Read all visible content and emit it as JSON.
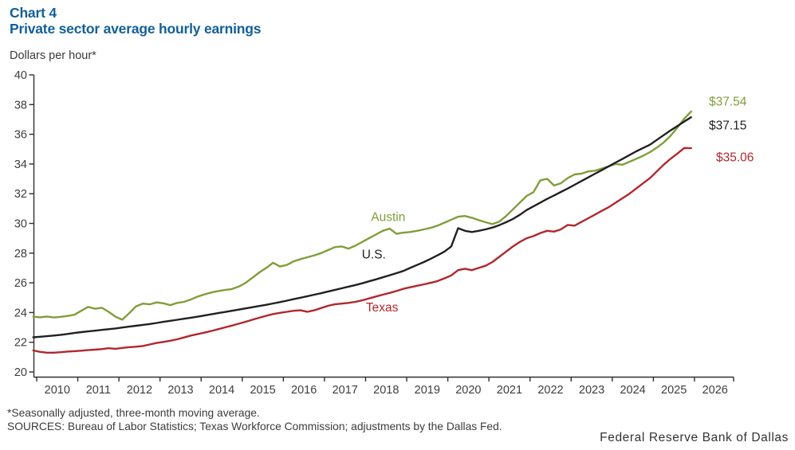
{
  "header": {
    "title": "Chart 4",
    "subtitle": "Private sector average hourly earnings",
    "unit_label": "Dollars per hour*"
  },
  "footer": {
    "footnote": "*Seasonally adjusted, three-month moving average.",
    "sources": "SOURCES: Bureau of Labor Statistics; Texas Workforce Commission; adjustments by the Dallas Fed.",
    "watermark": "Federal Reserve Bank of Dallas"
  },
  "colors": {
    "title_blue": "#115f99",
    "austin_green": "#7f9e3b",
    "us_black": "#231f20",
    "texas_red": "#b1272c",
    "axis": "#2f2f2f",
    "tick_text": "#3d3d3d"
  },
  "chart_data": {
    "type": "line",
    "title": "Private sector average hourly earnings",
    "ylabel": "Dollars per hour",
    "ylim": [
      20,
      40
    ],
    "ytick_step": 2,
    "xlim_years": [
      2009.83,
      2026.95
    ],
    "xtick_years": [
      2010,
      2011,
      2012,
      2013,
      2014,
      2015,
      2016,
      2017,
      2018,
      2019,
      2020,
      2021,
      2022,
      2023,
      2024,
      2025,
      2026
    ],
    "grid": false,
    "legend_position": "inline-labels",
    "series_start_year": 2009.917,
    "series_step_years": 0.16667,
    "series": [
      {
        "name": "Austin",
        "color": "#7f9e3b",
        "end_label": {
          "text": "$37.54",
          "x": 889,
          "dy": -13
        },
        "values": [
          23.72,
          23.68,
          23.73,
          23.67,
          23.71,
          23.77,
          23.85,
          24.12,
          24.38,
          24.26,
          24.32,
          24.05,
          23.72,
          23.52,
          23.95,
          24.42,
          24.6,
          24.55,
          24.68,
          24.62,
          24.5,
          24.65,
          24.72,
          24.88,
          25.08,
          25.22,
          25.35,
          25.45,
          25.52,
          25.58,
          25.75,
          26.0,
          26.35,
          26.7,
          27.0,
          27.35,
          27.1,
          27.2,
          27.45,
          27.6,
          27.72,
          27.85,
          28.0,
          28.2,
          28.4,
          28.45,
          28.3,
          28.5,
          28.75,
          29.0,
          29.25,
          29.5,
          29.65,
          29.3,
          29.38,
          29.42,
          29.5,
          29.6,
          29.7,
          29.85,
          30.05,
          30.25,
          30.45,
          30.5,
          30.38,
          30.22,
          30.08,
          29.95,
          30.12,
          30.5,
          30.95,
          31.4,
          31.85,
          32.1,
          32.9,
          33.0,
          32.55,
          32.7,
          33.05,
          33.3,
          33.35,
          33.5,
          33.55,
          33.7,
          33.85,
          34.0,
          33.95,
          34.15,
          34.35,
          34.55,
          34.8,
          35.1,
          35.45,
          35.9,
          36.45,
          37.05,
          37.54
        ]
      },
      {
        "name": "U.S.",
        "color": "#231f20",
        "end_label": {
          "text": "$37.15",
          "x": 889,
          "dy": 10
        },
        "values": [
          22.33,
          22.37,
          22.41,
          22.45,
          22.5,
          22.56,
          22.62,
          22.68,
          22.73,
          22.78,
          22.83,
          22.88,
          22.93,
          22.99,
          23.05,
          23.11,
          23.17,
          23.23,
          23.3,
          23.37,
          23.44,
          23.51,
          23.58,
          23.65,
          23.72,
          23.8,
          23.88,
          23.96,
          24.04,
          24.12,
          24.2,
          24.28,
          24.36,
          24.44,
          24.52,
          24.61,
          24.7,
          24.8,
          24.9,
          25.0,
          25.1,
          25.2,
          25.3,
          25.41,
          25.52,
          25.63,
          25.74,
          25.85,
          25.97,
          26.1,
          26.23,
          26.37,
          26.51,
          26.65,
          26.8,
          27.0,
          27.2,
          27.4,
          27.62,
          27.85,
          28.1,
          28.45,
          29.68,
          29.5,
          29.42,
          29.5,
          29.6,
          29.72,
          29.88,
          30.08,
          30.3,
          30.58,
          30.9,
          31.15,
          31.4,
          31.65,
          31.88,
          32.12,
          32.35,
          32.6,
          32.85,
          33.1,
          33.35,
          33.6,
          33.85,
          34.1,
          34.35,
          34.6,
          34.85,
          35.08,
          35.3,
          35.62,
          35.94,
          36.26,
          36.56,
          36.86,
          37.15
        ]
      },
      {
        "name": "Texas",
        "color": "#b1272c",
        "end_label": {
          "text": "$35.06",
          "x": 898,
          "dy": 11
        },
        "values": [
          21.45,
          21.35,
          21.3,
          21.3,
          21.33,
          21.37,
          21.4,
          21.43,
          21.47,
          21.5,
          21.54,
          21.6,
          21.56,
          21.62,
          21.67,
          21.7,
          21.75,
          21.85,
          21.95,
          22.02,
          22.1,
          22.2,
          22.32,
          22.45,
          22.55,
          22.65,
          22.76,
          22.88,
          23.0,
          23.12,
          23.25,
          23.38,
          23.52,
          23.65,
          23.78,
          23.9,
          23.98,
          24.05,
          24.12,
          24.15,
          24.05,
          24.15,
          24.3,
          24.45,
          24.55,
          24.6,
          24.65,
          24.72,
          24.82,
          24.95,
          25.08,
          25.2,
          25.32,
          25.45,
          25.6,
          25.7,
          25.8,
          25.9,
          26.0,
          26.12,
          26.3,
          26.5,
          26.85,
          26.95,
          26.85,
          27.0,
          27.15,
          27.4,
          27.75,
          28.1,
          28.45,
          28.75,
          29.0,
          29.15,
          29.35,
          29.5,
          29.45,
          29.6,
          29.9,
          29.85,
          30.1,
          30.35,
          30.6,
          30.85,
          31.1,
          31.4,
          31.7,
          32.0,
          32.35,
          32.7,
          33.05,
          33.5,
          33.95,
          34.35,
          34.7,
          35.08,
          35.06
        ]
      }
    ],
    "series_labels": [
      {
        "text": "Austin",
        "x_year": 2018.55,
        "v": 30.45,
        "color": "#7f9e3b"
      },
      {
        "text": "U.S.",
        "x_year": 2018.2,
        "v": 27.93,
        "color": "#231f20"
      },
      {
        "text": "Texas",
        "x_year": 2018.4,
        "v": 24.38,
        "color": "#b1272c"
      }
    ],
    "ytick_labels": [
      "20",
      "22",
      "24",
      "26",
      "28",
      "30",
      "32",
      "34",
      "36",
      "38",
      "40"
    ]
  }
}
